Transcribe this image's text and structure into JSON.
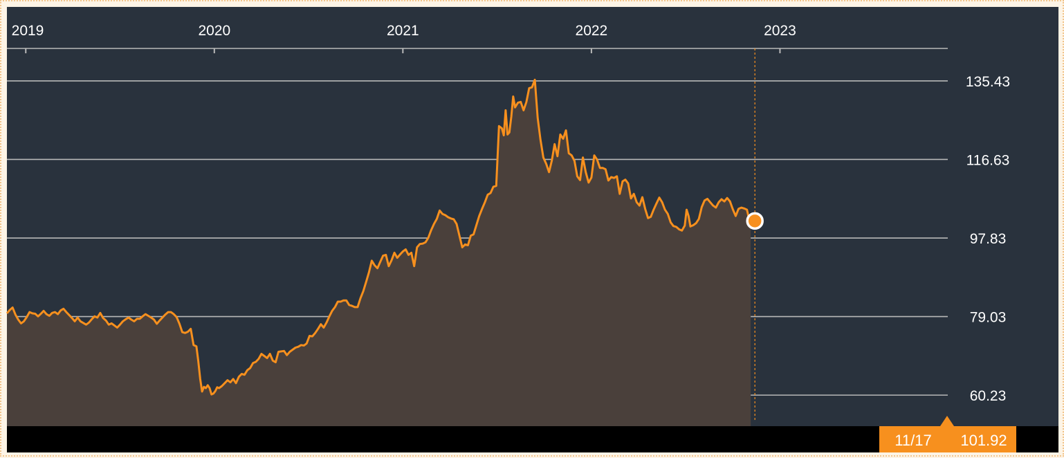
{
  "colors": {
    "background": "#29323d",
    "line": "#f7901e",
    "fill": "#4a403b",
    "grid": "#b9b9b9",
    "axis_text": "#ffffff",
    "bottom_bar": "#000000",
    "badge": "#f7901e",
    "badge_text": "#ffffff",
    "frame": "#f2c48b"
  },
  "badge": {
    "date": "11/17",
    "value": "101.92"
  },
  "chart_data": {
    "type": "area",
    "title": "",
    "xlabel": "",
    "ylabel": "",
    "x_ticks": [
      "2019",
      "2020",
      "2021",
      "2022",
      "2023"
    ],
    "y_ticks": [
      "135.43",
      "116.63",
      "97.83",
      "79.03",
      "60.23"
    ],
    "ylim": [
      52.8,
      143.2
    ],
    "xlim": [
      2018.9,
      2023.89
    ],
    "grid": true,
    "legend": "none",
    "series": [
      {
        "points": [
          [
            2018.9,
            79.8
          ],
          [
            2018.915,
            80.6
          ],
          [
            2018.93,
            81.2
          ],
          [
            2018.945,
            79.5
          ],
          [
            2018.96,
            78.3
          ],
          [
            2018.975,
            77.4
          ],
          [
            2018.99,
            77.9
          ],
          [
            2019.005,
            78.9
          ],
          [
            2019.02,
            80.1
          ],
          [
            2019.035,
            79.8
          ],
          [
            2019.05,
            79.7
          ],
          [
            2019.065,
            79.1
          ],
          [
            2019.08,
            79.7
          ],
          [
            2019.095,
            80.4
          ],
          [
            2019.11,
            79.6
          ],
          [
            2019.125,
            79.2
          ],
          [
            2019.14,
            79.9
          ],
          [
            2019.155,
            80.1
          ],
          [
            2019.17,
            79.6
          ],
          [
            2019.185,
            80.5
          ],
          [
            2019.2,
            80.9
          ],
          [
            2019.215,
            80.1
          ],
          [
            2019.23,
            79.4
          ],
          [
            2019.245,
            78.7
          ],
          [
            2019.26,
            77.9
          ],
          [
            2019.275,
            78.8
          ],
          [
            2019.29,
            77.9
          ],
          [
            2019.305,
            77.5
          ],
          [
            2019.32,
            77.1
          ],
          [
            2019.335,
            77.6
          ],
          [
            2019.35,
            78.4
          ],
          [
            2019.365,
            79.1
          ],
          [
            2019.38,
            78.8
          ],
          [
            2019.395,
            79.9
          ],
          [
            2019.41,
            78.7
          ],
          [
            2019.425,
            78.1
          ],
          [
            2019.44,
            77.1
          ],
          [
            2019.455,
            77.4
          ],
          [
            2019.47,
            76.9
          ],
          [
            2019.485,
            76.4
          ],
          [
            2019.5,
            77.1
          ],
          [
            2019.515,
            77.9
          ],
          [
            2019.53,
            78.4
          ],
          [
            2019.545,
            78.8
          ],
          [
            2019.56,
            78.3
          ],
          [
            2019.575,
            77.9
          ],
          [
            2019.59,
            78.5
          ],
          [
            2019.605,
            78.5
          ],
          [
            2019.62,
            79.1
          ],
          [
            2019.635,
            79.6
          ],
          [
            2019.65,
            79.2
          ],
          [
            2019.665,
            78.8
          ],
          [
            2019.68,
            78.3
          ],
          [
            2019.695,
            77.3
          ],
          [
            2019.71,
            78.1
          ],
          [
            2019.725,
            78.8
          ],
          [
            2019.74,
            79.5
          ],
          [
            2019.755,
            80.1
          ],
          [
            2019.77,
            80.1
          ],
          [
            2019.785,
            79.6
          ],
          [
            2019.8,
            78.9
          ],
          [
            2019.815,
            77.3
          ],
          [
            2019.83,
            75.3
          ],
          [
            2019.845,
            75.1
          ],
          [
            2019.86,
            75.4
          ],
          [
            2019.875,
            76.1
          ],
          [
            2019.89,
            72.2
          ],
          [
            2019.905,
            71.9
          ],
          [
            2019.915,
            68.4
          ],
          [
            2019.925,
            64.1
          ],
          [
            2019.935,
            61.1
          ],
          [
            2019.945,
            62.2
          ],
          [
            2019.955,
            61.9
          ],
          [
            2019.965,
            62.6
          ],
          [
            2019.975,
            61.9
          ],
          [
            2019.985,
            60.4
          ],
          [
            2019.995,
            60.6
          ],
          [
            2020.005,
            61.2
          ],
          [
            2020.015,
            62.1
          ],
          [
            2020.025,
            61.9
          ],
          [
            2020.04,
            62.4
          ],
          [
            2020.055,
            63.1
          ],
          [
            2020.07,
            63.8
          ],
          [
            2020.085,
            63.3
          ],
          [
            2020.1,
            64.1
          ],
          [
            2020.115,
            63.1
          ],
          [
            2020.13,
            64.6
          ],
          [
            2020.145,
            65.3
          ],
          [
            2020.16,
            65.1
          ],
          [
            2020.175,
            66.2
          ],
          [
            2020.19,
            66.7
          ],
          [
            2020.205,
            67.9
          ],
          [
            2020.22,
            68.2
          ],
          [
            2020.235,
            68.9
          ],
          [
            2020.25,
            70.1
          ],
          [
            2020.265,
            69.6
          ],
          [
            2020.28,
            69.1
          ],
          [
            2020.295,
            70.1
          ],
          [
            2020.31,
            68.5
          ],
          [
            2020.325,
            68.1
          ],
          [
            2020.34,
            70.6
          ],
          [
            2020.355,
            70.7
          ],
          [
            2020.37,
            70.8
          ],
          [
            2020.385,
            69.8
          ],
          [
            2020.4,
            70.6
          ],
          [
            2020.415,
            71.1
          ],
          [
            2020.43,
            71.6
          ],
          [
            2020.445,
            71.8
          ],
          [
            2020.46,
            72.2
          ],
          [
            2020.475,
            72.1
          ],
          [
            2020.49,
            72.6
          ],
          [
            2020.505,
            74.4
          ],
          [
            2020.52,
            74.3
          ],
          [
            2020.535,
            75.1
          ],
          [
            2020.55,
            76.1
          ],
          [
            2020.565,
            77.2
          ],
          [
            2020.58,
            76.4
          ],
          [
            2020.595,
            77.6
          ],
          [
            2020.61,
            79.1
          ],
          [
            2020.625,
            80.4
          ],
          [
            2020.64,
            81.3
          ],
          [
            2020.655,
            82.6
          ],
          [
            2020.67,
            82.6
          ],
          [
            2020.685,
            82.9
          ],
          [
            2020.7,
            82.9
          ],
          [
            2020.715,
            81.8
          ],
          [
            2020.73,
            81.6
          ],
          [
            2020.745,
            81.3
          ],
          [
            2020.76,
            81.3
          ],
          [
            2020.775,
            83.4
          ],
          [
            2020.79,
            85.1
          ],
          [
            2020.805,
            87.3
          ],
          [
            2020.82,
            89.6
          ],
          [
            2020.835,
            92.4
          ],
          [
            2020.85,
            91.3
          ],
          [
            2020.865,
            90.6
          ],
          [
            2020.88,
            92.1
          ],
          [
            2020.895,
            93.6
          ],
          [
            2020.91,
            93.8
          ],
          [
            2020.925,
            91.1
          ],
          [
            2020.94,
            92.5
          ],
          [
            2020.955,
            94.3
          ],
          [
            2020.97,
            93.1
          ],
          [
            2020.985,
            93.9
          ],
          [
            2021.0,
            94.6
          ],
          [
            2021.015,
            95.1
          ],
          [
            2021.03,
            93.8
          ],
          [
            2021.045,
            94.3
          ],
          [
            2021.06,
            91.1
          ],
          [
            2021.075,
            95.6
          ],
          [
            2021.09,
            96.4
          ],
          [
            2021.105,
            96.5
          ],
          [
            2021.12,
            96.8
          ],
          [
            2021.135,
            97.9
          ],
          [
            2021.15,
            99.7
          ],
          [
            2021.165,
            101.2
          ],
          [
            2021.18,
            102.4
          ],
          [
            2021.195,
            104.4
          ],
          [
            2021.21,
            103.6
          ],
          [
            2021.225,
            103.3
          ],
          [
            2021.24,
            102.8
          ],
          [
            2021.255,
            102.5
          ],
          [
            2021.27,
            102.3
          ],
          [
            2021.285,
            101.2
          ],
          [
            2021.3,
            98.4
          ],
          [
            2021.315,
            95.6
          ],
          [
            2021.33,
            96.3
          ],
          [
            2021.345,
            96.1
          ],
          [
            2021.36,
            98.4
          ],
          [
            2021.375,
            98.7
          ],
          [
            2021.39,
            100.9
          ],
          [
            2021.405,
            103.1
          ],
          [
            2021.42,
            104.8
          ],
          [
            2021.435,
            106.4
          ],
          [
            2021.45,
            108.2
          ],
          [
            2021.465,
            108.6
          ],
          [
            2021.48,
            110.1
          ],
          [
            2021.495,
            110.3
          ],
          [
            2021.51,
            124.6
          ],
          [
            2021.525,
            124.1
          ],
          [
            2021.535,
            122.4
          ],
          [
            2021.545,
            128.4
          ],
          [
            2021.555,
            122.6
          ],
          [
            2021.565,
            123.1
          ],
          [
            2021.575,
            126.9
          ],
          [
            2021.585,
            131.7
          ],
          [
            2021.595,
            129.1
          ],
          [
            2021.61,
            130.2
          ],
          [
            2021.625,
            130.4
          ],
          [
            2021.64,
            128.4
          ],
          [
            2021.655,
            130.4
          ],
          [
            2021.67,
            133.7
          ],
          [
            2021.685,
            133.9
          ],
          [
            2021.7,
            135.7
          ],
          [
            2021.715,
            126.6
          ],
          [
            2021.73,
            121.3
          ],
          [
            2021.745,
            117.1
          ],
          [
            2021.76,
            115.6
          ],
          [
            2021.775,
            113.6
          ],
          [
            2021.79,
            116.4
          ],
          [
            2021.805,
            120.3
          ],
          [
            2021.82,
            117.4
          ],
          [
            2021.835,
            122.6
          ],
          [
            2021.85,
            121.6
          ],
          [
            2021.865,
            123.6
          ],
          [
            2021.88,
            118.1
          ],
          [
            2021.895,
            117.6
          ],
          [
            2021.91,
            116.3
          ],
          [
            2021.925,
            112.6
          ],
          [
            2021.94,
            111.7
          ],
          [
            2021.955,
            117.1
          ],
          [
            2021.97,
            113.6
          ],
          [
            2021.985,
            111.1
          ],
          [
            2022.0,
            112.3
          ],
          [
            2022.015,
            117.6
          ],
          [
            2022.03,
            116.6
          ],
          [
            2022.045,
            114.6
          ],
          [
            2022.06,
            114.6
          ],
          [
            2022.075,
            114.3
          ],
          [
            2022.09,
            111.6
          ],
          [
            2022.105,
            112.4
          ],
          [
            2022.12,
            112.2
          ],
          [
            2022.135,
            112.6
          ],
          [
            2022.15,
            108.4
          ],
          [
            2022.165,
            111.4
          ],
          [
            2022.18,
            111.8
          ],
          [
            2022.195,
            110.9
          ],
          [
            2022.21,
            107.3
          ],
          [
            2022.225,
            108.4
          ],
          [
            2022.24,
            106.4
          ],
          [
            2022.255,
            105.6
          ],
          [
            2022.27,
            107.6
          ],
          [
            2022.285,
            104.8
          ],
          [
            2022.3,
            102.6
          ],
          [
            2022.315,
            102.9
          ],
          [
            2022.33,
            104.6
          ],
          [
            2022.345,
            106.1
          ],
          [
            2022.36,
            107.5
          ],
          [
            2022.375,
            106.4
          ],
          [
            2022.39,
            104.6
          ],
          [
            2022.405,
            103.6
          ],
          [
            2022.42,
            101.6
          ],
          [
            2022.435,
            100.7
          ],
          [
            2022.45,
            100.5
          ],
          [
            2022.465,
            99.9
          ],
          [
            2022.48,
            99.6
          ],
          [
            2022.495,
            100.8
          ],
          [
            2022.505,
            104.6
          ],
          [
            2022.515,
            103.1
          ],
          [
            2022.525,
            100.6
          ],
          [
            2022.54,
            100.9
          ],
          [
            2022.555,
            101.4
          ],
          [
            2022.57,
            102.4
          ],
          [
            2022.585,
            105.2
          ],
          [
            2022.6,
            106.8
          ],
          [
            2022.615,
            107.2
          ],
          [
            2022.63,
            106.4
          ],
          [
            2022.645,
            105.6
          ],
          [
            2022.66,
            105.1
          ],
          [
            2022.675,
            106.4
          ],
          [
            2022.69,
            107.1
          ],
          [
            2022.705,
            106.6
          ],
          [
            2022.72,
            107.4
          ],
          [
            2022.735,
            106.6
          ],
          [
            2022.75,
            104.7
          ],
          [
            2022.765,
            103.1
          ],
          [
            2022.78,
            104.8
          ],
          [
            2022.795,
            105.1
          ],
          [
            2022.81,
            104.9
          ],
          [
            2022.825,
            104.6
          ],
          [
            2022.835,
            102.6
          ],
          [
            2022.845,
            101.92
          ]
        ]
      }
    ],
    "last_point": {
      "label": "11/17",
      "value": 101.92
    }
  }
}
